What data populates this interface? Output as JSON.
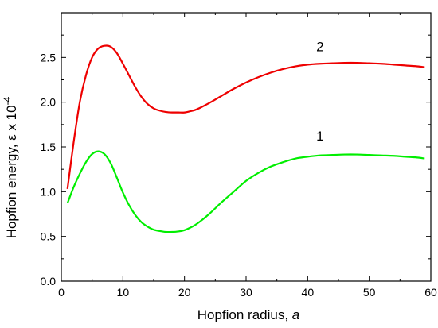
{
  "chart_data": {
    "type": "line",
    "xlabel": "Hopfion radius, ",
    "xlabel_var": "a",
    "ylabel": "Hopfion energy, ε x 10",
    "ylabel_exp": "-4",
    "xlim": [
      0,
      60
    ],
    "ylim": [
      0,
      3.0
    ],
    "xticks": [
      0,
      10,
      20,
      30,
      40,
      50,
      60
    ],
    "yticks": [
      0.0,
      0.5,
      1.0,
      1.5,
      2.0,
      2.5
    ],
    "ytick_labels": [
      "0.0",
      "0.5",
      "1.0",
      "1.5",
      "2.0",
      "2.5"
    ],
    "grid": false,
    "series": [
      {
        "name": "1",
        "color": "#00ee00",
        "x": [
          1,
          2,
          3,
          4,
          5,
          6,
          7,
          8,
          9,
          10,
          11,
          12,
          13,
          14,
          15,
          16,
          17,
          18,
          19,
          20,
          21,
          22,
          24,
          26,
          28,
          30,
          32,
          34,
          36,
          38,
          40,
          42,
          44,
          46,
          48,
          50,
          52,
          54,
          56,
          58,
          59
        ],
        "y": [
          0.87,
          1.05,
          1.2,
          1.33,
          1.42,
          1.45,
          1.42,
          1.32,
          1.16,
          0.99,
          0.85,
          0.74,
          0.66,
          0.61,
          0.575,
          0.56,
          0.55,
          0.55,
          0.555,
          0.57,
          0.6,
          0.64,
          0.75,
          0.88,
          1.0,
          1.12,
          1.21,
          1.28,
          1.33,
          1.37,
          1.39,
          1.405,
          1.41,
          1.415,
          1.415,
          1.41,
          1.405,
          1.4,
          1.39,
          1.38,
          1.37
        ],
        "label_x": 42,
        "label_y": 1.57
      },
      {
        "name": "2",
        "color": "#ee0000",
        "x": [
          1,
          2,
          3,
          4,
          5,
          6,
          7,
          8,
          9,
          10,
          11,
          12,
          13,
          14,
          15,
          16,
          17,
          18,
          19,
          20,
          21,
          22,
          24,
          26,
          28,
          30,
          32,
          34,
          36,
          38,
          40,
          42,
          44,
          46,
          48,
          50,
          52,
          54,
          56,
          58,
          59
        ],
        "y": [
          1.03,
          1.55,
          2.0,
          2.3,
          2.5,
          2.6,
          2.63,
          2.62,
          2.55,
          2.43,
          2.3,
          2.17,
          2.06,
          1.98,
          1.93,
          1.905,
          1.89,
          1.885,
          1.885,
          1.885,
          1.9,
          1.92,
          1.99,
          2.07,
          2.15,
          2.22,
          2.28,
          2.33,
          2.37,
          2.4,
          2.42,
          2.43,
          2.435,
          2.44,
          2.44,
          2.435,
          2.43,
          2.42,
          2.41,
          2.4,
          2.39
        ],
        "label_x": 42,
        "label_y": 2.57
      }
    ]
  }
}
